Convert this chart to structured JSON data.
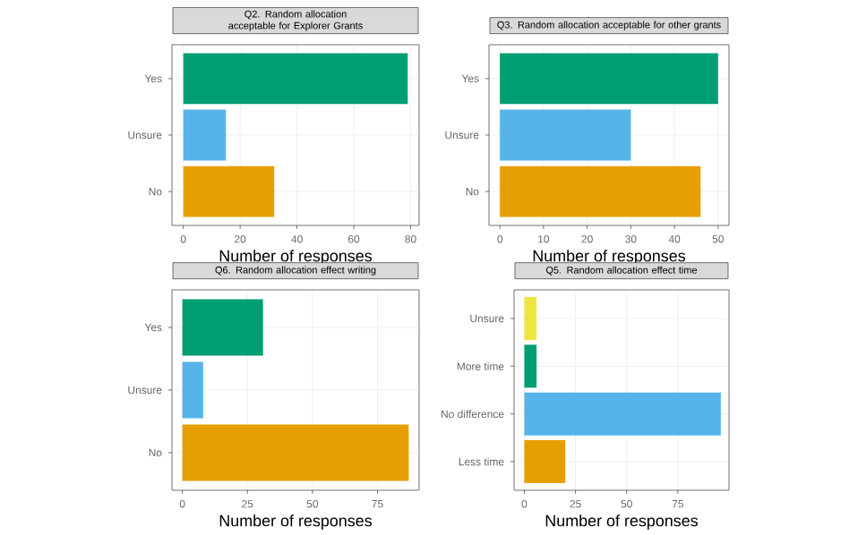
{
  "chart_data": [
    {
      "type": "bar",
      "orientation": "horizontal",
      "title": "Q2. Random allocation acceptable for Explorer Grants",
      "categories": [
        "Yes",
        "Unsure",
        "No"
      ],
      "values": [
        79,
        15,
        32
      ],
      "colors": [
        "#009e73",
        "#56b4e9",
        "#e69f00"
      ],
      "xlabel": "Number of responses",
      "xlim": [
        -4,
        83
      ],
      "xticks": [
        0,
        20,
        40,
        60,
        80
      ],
      "grid": true
    },
    {
      "type": "bar",
      "orientation": "horizontal",
      "title": "Q3. Random allocation acceptable for other grants",
      "categories": [
        "Yes",
        "Unsure",
        "No"
      ],
      "values": [
        50,
        30,
        46
      ],
      "colors": [
        "#009e73",
        "#56b4e9",
        "#e69f00"
      ],
      "xlabel": "Number of responses",
      "xlim": [
        -2.5,
        52.5
      ],
      "xticks": [
        0,
        10,
        20,
        30,
        40,
        50
      ],
      "grid": true
    },
    {
      "type": "bar",
      "orientation": "horizontal",
      "title": "Q6. Random allocation effect writing",
      "categories": [
        "Yes",
        "Unsure",
        "No"
      ],
      "values": [
        31,
        8,
        87
      ],
      "colors": [
        "#009e73",
        "#56b4e9",
        "#e69f00"
      ],
      "xlabel": "Number of responses",
      "xlim": [
        -4,
        91
      ],
      "xticks": [
        0,
        25,
        50,
        75
      ],
      "grid": true
    },
    {
      "type": "bar",
      "orientation": "horizontal",
      "title": "Q5. Random allocation effect time",
      "categories": [
        "Unsure",
        "More time",
        "No difference",
        "Less time"
      ],
      "values": [
        6,
        6,
        96,
        20
      ],
      "colors": [
        "#f0e442",
        "#009e73",
        "#56b4e9",
        "#e69f00"
      ],
      "xlabel": "Number of responses",
      "xlim": [
        -5,
        100
      ],
      "xticks": [
        0,
        25,
        50,
        75
      ],
      "grid": true
    }
  ]
}
